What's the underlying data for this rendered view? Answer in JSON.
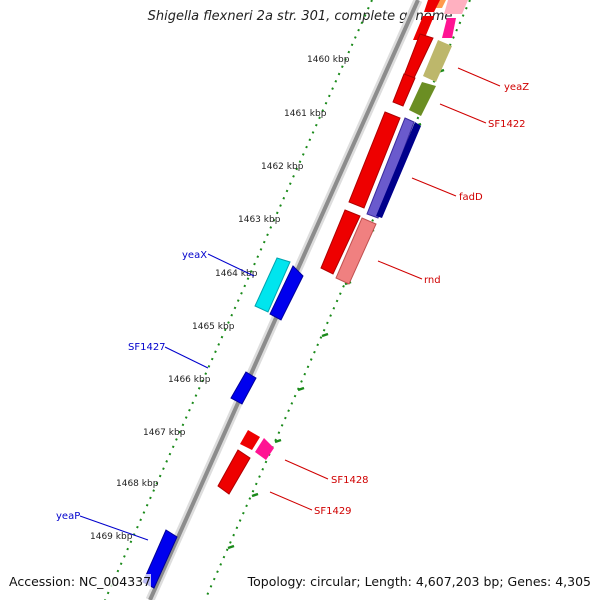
{
  "title": "Shigella flexneri 2a str. 301, complete genome",
  "footer": {
    "accession": "Accession: NC_004337",
    "summary": "Topology: circular; Length: 4,607,203 bp; Genes: 4,305"
  },
  "kbp_labels": [
    "1460 kbp",
    "1461 kbp",
    "1462 kbp",
    "1463 kbp",
    "1464 kbp",
    "1465 kbp",
    "1466 kbp",
    "1467 kbp",
    "1468 kbp",
    "1469 kbp"
  ],
  "gene_labels": [
    {
      "key": "yeaZ",
      "text": "yeaZ",
      "color": "#d00000"
    },
    {
      "key": "SF1422",
      "text": "SF1422",
      "color": "#d00000"
    },
    {
      "key": "fadD",
      "text": "fadD",
      "color": "#d00000"
    },
    {
      "key": "rnd",
      "text": "rnd",
      "color": "#d00000"
    },
    {
      "key": "yeaX",
      "text": "yeaX",
      "color": "#0000cc"
    },
    {
      "key": "SF1427",
      "text": "SF1427",
      "color": "#0000cc"
    },
    {
      "key": "SF1428",
      "text": "SF1428",
      "color": "#d00000"
    },
    {
      "key": "SF1429",
      "text": "SF1429",
      "color": "#d00000"
    },
    {
      "key": "yeaP",
      "text": "yeaP",
      "color": "#0000cc"
    }
  ],
  "colors": {
    "backbone": "#8c8c8c",
    "tick": "#1a8a1a",
    "forward_cds": "#ee0000",
    "reverse_cds": "#0000ee"
  }
}
